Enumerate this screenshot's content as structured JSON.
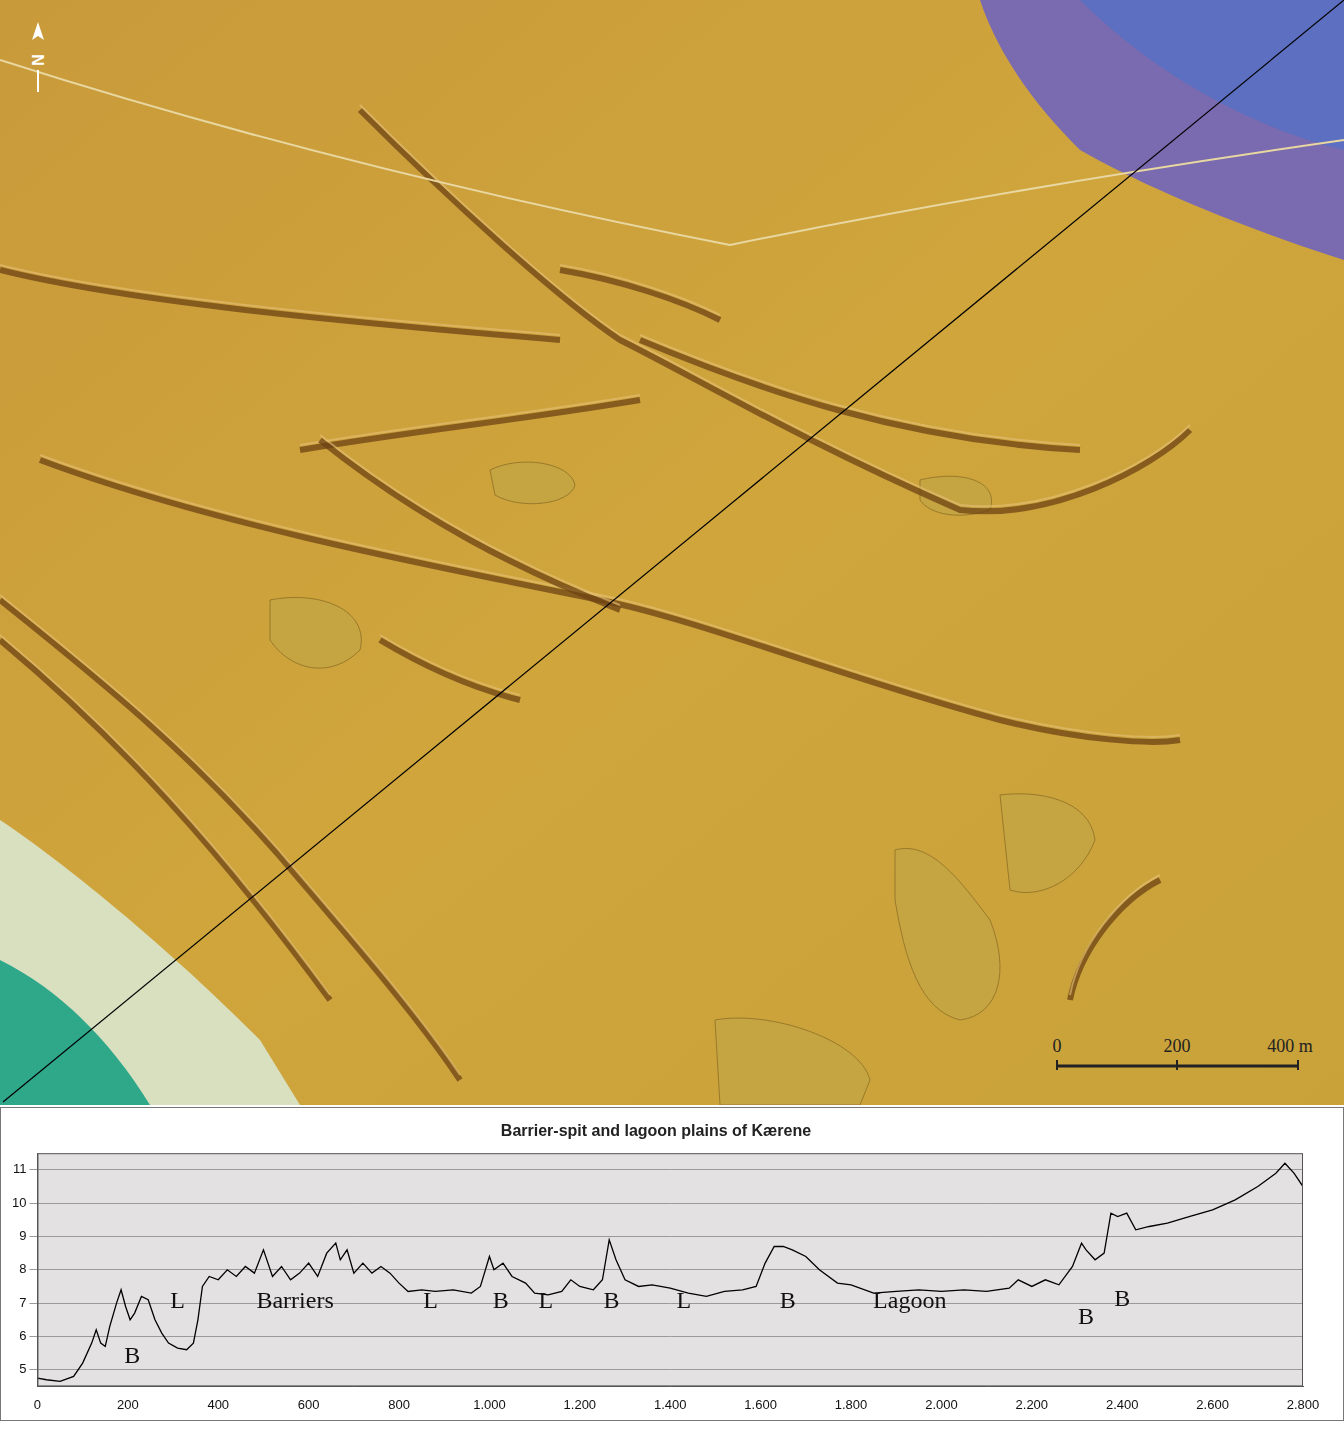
{
  "map": {
    "north_label": "N",
    "scale_labels": [
      "0",
      "200",
      "400 m"
    ]
  },
  "chart_data": {
    "type": "line",
    "title": "Barrier-spit and lagoon plains of Kærene",
    "color": "#000000",
    "grid": true,
    "legend": false,
    "xlim": [
      0,
      2800
    ],
    "xticks": [
      0,
      200,
      400,
      600,
      800,
      {
        "value": 1000,
        "label": "1.000"
      },
      {
        "value": 1200,
        "label": "1.200"
      },
      {
        "value": 1400,
        "label": "1.400"
      },
      {
        "value": 1600,
        "label": "1.600"
      },
      {
        "value": 1800,
        "label": "1.800"
      },
      {
        "value": 2000,
        "label": "2.000"
      },
      {
        "value": 2200,
        "label": "2.200"
      },
      {
        "value": 2400,
        "label": "2.400"
      },
      {
        "value": 2600,
        "label": "2.600"
      },
      {
        "value": 2800,
        "label": "2.800"
      }
    ],
    "ylim": [
      4.5,
      11.5
    ],
    "yticks": [
      5,
      6,
      7,
      8,
      9,
      10,
      11
    ],
    "x": [
      0,
      20,
      50,
      80,
      100,
      120,
      130,
      140,
      150,
      160,
      175,
      185,
      195,
      205,
      215,
      230,
      245,
      260,
      275,
      290,
      310,
      330,
      345,
      355,
      365,
      380,
      400,
      420,
      440,
      460,
      480,
      500,
      520,
      540,
      560,
      580,
      600,
      620,
      640,
      660,
      670,
      685,
      700,
      720,
      740,
      760,
      780,
      800,
      820,
      850,
      880,
      920,
      960,
      980,
      1000,
      1010,
      1030,
      1050,
      1080,
      1100,
      1130,
      1160,
      1180,
      1200,
      1230,
      1250,
      1265,
      1280,
      1300,
      1330,
      1360,
      1400,
      1440,
      1480,
      1520,
      1560,
      1590,
      1610,
      1630,
      1650,
      1670,
      1700,
      1730,
      1770,
      1800,
      1850,
      1900,
      1950,
      2000,
      2050,
      2100,
      2150,
      2170,
      2200,
      2230,
      2260,
      2290,
      2310,
      2320,
      2340,
      2360,
      2375,
      2390,
      2410,
      2430,
      2460,
      2500,
      2550,
      2600,
      2650,
      2700,
      2740,
      2760,
      2780,
      2800
    ],
    "values": [
      4.75,
      4.7,
      4.65,
      4.8,
      5.2,
      5.8,
      6.2,
      5.8,
      5.7,
      6.3,
      7.0,
      7.4,
      6.9,
      6.5,
      6.7,
      7.2,
      7.1,
      6.5,
      6.1,
      5.8,
      5.65,
      5.6,
      5.8,
      6.5,
      7.5,
      7.8,
      7.7,
      8.0,
      7.8,
      8.1,
      7.9,
      8.6,
      7.8,
      8.1,
      7.7,
      7.9,
      8.2,
      7.8,
      8.5,
      8.8,
      8.3,
      8.6,
      7.9,
      8.2,
      7.9,
      8.1,
      7.9,
      7.6,
      7.35,
      7.4,
      7.35,
      7.4,
      7.3,
      7.5,
      8.4,
      8.0,
      8.2,
      7.8,
      7.6,
      7.3,
      7.25,
      7.35,
      7.7,
      7.5,
      7.4,
      7.7,
      8.9,
      8.3,
      7.7,
      7.5,
      7.55,
      7.45,
      7.3,
      7.2,
      7.35,
      7.4,
      7.5,
      8.2,
      8.7,
      8.7,
      8.6,
      8.4,
      8.0,
      7.6,
      7.55,
      7.3,
      7.35,
      7.4,
      7.35,
      7.4,
      7.35,
      7.45,
      7.7,
      7.5,
      7.7,
      7.55,
      8.1,
      8.8,
      8.6,
      8.3,
      8.5,
      9.7,
      9.6,
      9.7,
      9.2,
      9.3,
      9.4,
      9.6,
      9.8,
      10.1,
      10.5,
      10.9,
      11.2,
      10.9,
      10.5
    ],
    "annotations": [
      {
        "text": "B",
        "x": 210,
        "y": 5.4
      },
      {
        "text": "L",
        "x": 310,
        "y": 7.05
      },
      {
        "text": "Barriers",
        "x": 570,
        "y": 7.05
      },
      {
        "text": "L",
        "x": 870,
        "y": 7.05
      },
      {
        "text": "B",
        "x": 1025,
        "y": 7.05
      },
      {
        "text": "L",
        "x": 1125,
        "y": 7.05
      },
      {
        "text": "B",
        "x": 1270,
        "y": 7.05
      },
      {
        "text": "L",
        "x": 1430,
        "y": 7.05
      },
      {
        "text": "B",
        "x": 1660,
        "y": 7.05
      },
      {
        "text": "Lagoon",
        "x": 1930,
        "y": 7.05
      },
      {
        "text": "B",
        "x": 2320,
        "y": 6.55
      },
      {
        "text": "B",
        "x": 2400,
        "y": 7.1
      }
    ]
  }
}
